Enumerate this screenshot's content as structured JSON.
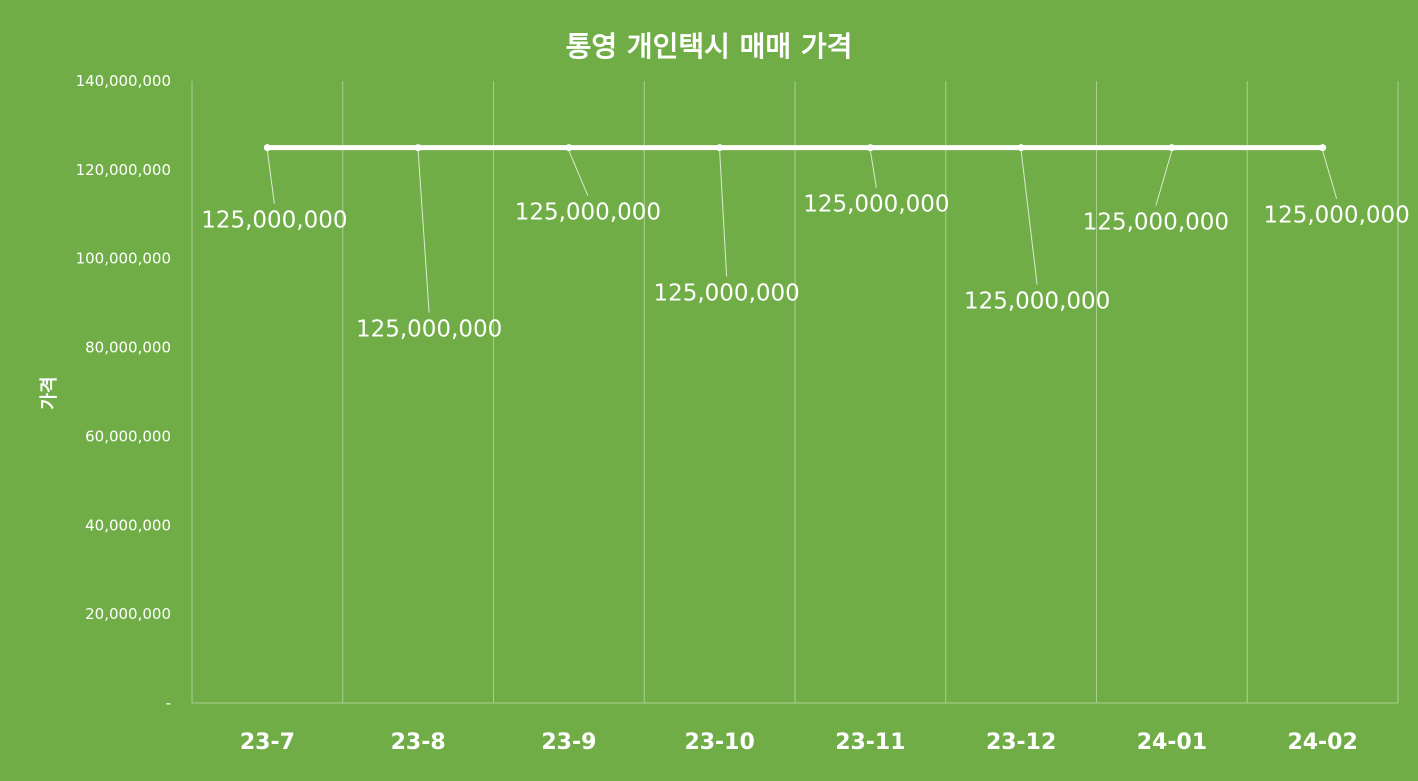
{
  "chart_data": {
    "type": "line",
    "title": "통영 개인택시 매매 가격",
    "xlabel": "",
    "ylabel": "가격",
    "categories": [
      "23-7",
      "23-8",
      "23-9",
      "23-10",
      "23-11",
      "23-12",
      "24-01",
      "24-02"
    ],
    "series": [
      {
        "values": [
          125000000,
          125000000,
          125000000,
          125000000,
          125000000,
          125000000,
          125000000,
          125000000
        ],
        "color": "#ffffff"
      }
    ],
    "data_labels": [
      "125,000,000",
      "125,000,000",
      "125,000,000",
      "125,000,000",
      "125,000,000",
      "125,000,000",
      "125,000,000",
      "125,000,000"
    ],
    "ylim": [
      0,
      140000000
    ],
    "y_ticks": [
      0,
      20000000,
      40000000,
      60000000,
      80000000,
      100000000,
      120000000,
      140000000
    ],
    "y_tick_labels": [
      "-",
      "20,000,000",
      "40,000,000",
      "60,000,000",
      "80,000,000",
      "100,000,000",
      "120,000,000",
      "140,000,000"
    ],
    "grid": "vertical",
    "legend": "none",
    "background_color": "#70ad47",
    "grid_color": "#a9cf8f",
    "text_color": "#ffffff"
  }
}
